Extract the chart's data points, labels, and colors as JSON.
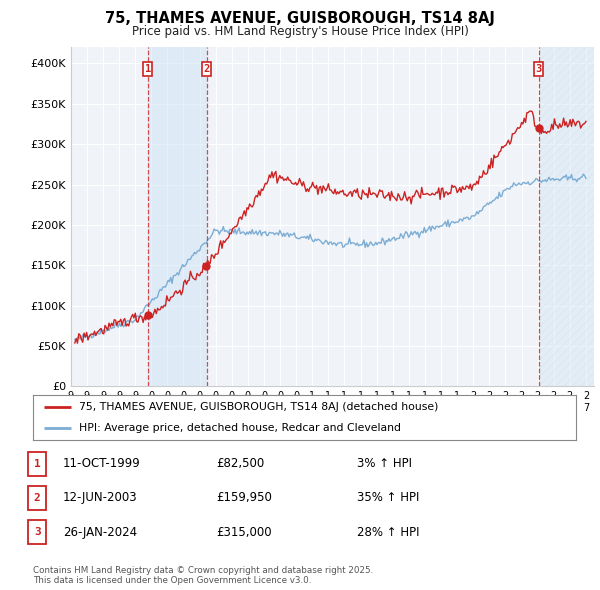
{
  "title": "75, THAMES AVENUE, GUISBOROUGH, TS14 8AJ",
  "subtitle": "Price paid vs. HM Land Registry's House Price Index (HPI)",
  "ylim": [
    0,
    420000
  ],
  "yticks": [
    0,
    50000,
    100000,
    150000,
    200000,
    250000,
    300000,
    350000,
    400000
  ],
  "ytick_labels": [
    "£0",
    "£50K",
    "£100K",
    "£150K",
    "£200K",
    "£250K",
    "£300K",
    "£350K",
    "£400K"
  ],
  "xlim_start": 1995.25,
  "xlim_end": 2027.5,
  "transaction1": {
    "date_num": 1999.78,
    "price": 82500,
    "label": "1"
  },
  "transaction2": {
    "date_num": 2003.44,
    "price": 159950,
    "label": "2"
  },
  "transaction3": {
    "date_num": 2024.07,
    "price": 315000,
    "label": "3"
  },
  "hpi_line_color": "#7dadd4",
  "price_line_color": "#cc2222",
  "vline_color": "#cc2222",
  "shade_color": "#d0e4f5",
  "shade_alpha": 0.55,
  "hatch_color": "#c0d8ee",
  "legend_label_price": "75, THAMES AVENUE, GUISBOROUGH, TS14 8AJ (detached house)",
  "legend_label_hpi": "HPI: Average price, detached house, Redcar and Cleveland",
  "table_rows": [
    {
      "num": "1",
      "date": "11-OCT-1999",
      "price": "£82,500",
      "change": "3% ↑ HPI"
    },
    {
      "num": "2",
      "date": "12-JUN-2003",
      "price": "£159,950",
      "change": "35% ↑ HPI"
    },
    {
      "num": "3",
      "date": "26-JAN-2024",
      "price": "£315,000",
      "change": "28% ↑ HPI"
    }
  ],
  "footer": "Contains HM Land Registry data © Crown copyright and database right 2025.\nThis data is licensed under the Open Government Licence v3.0.",
  "bg_color": "#f0f4f8",
  "grid_color": "#ffffff"
}
